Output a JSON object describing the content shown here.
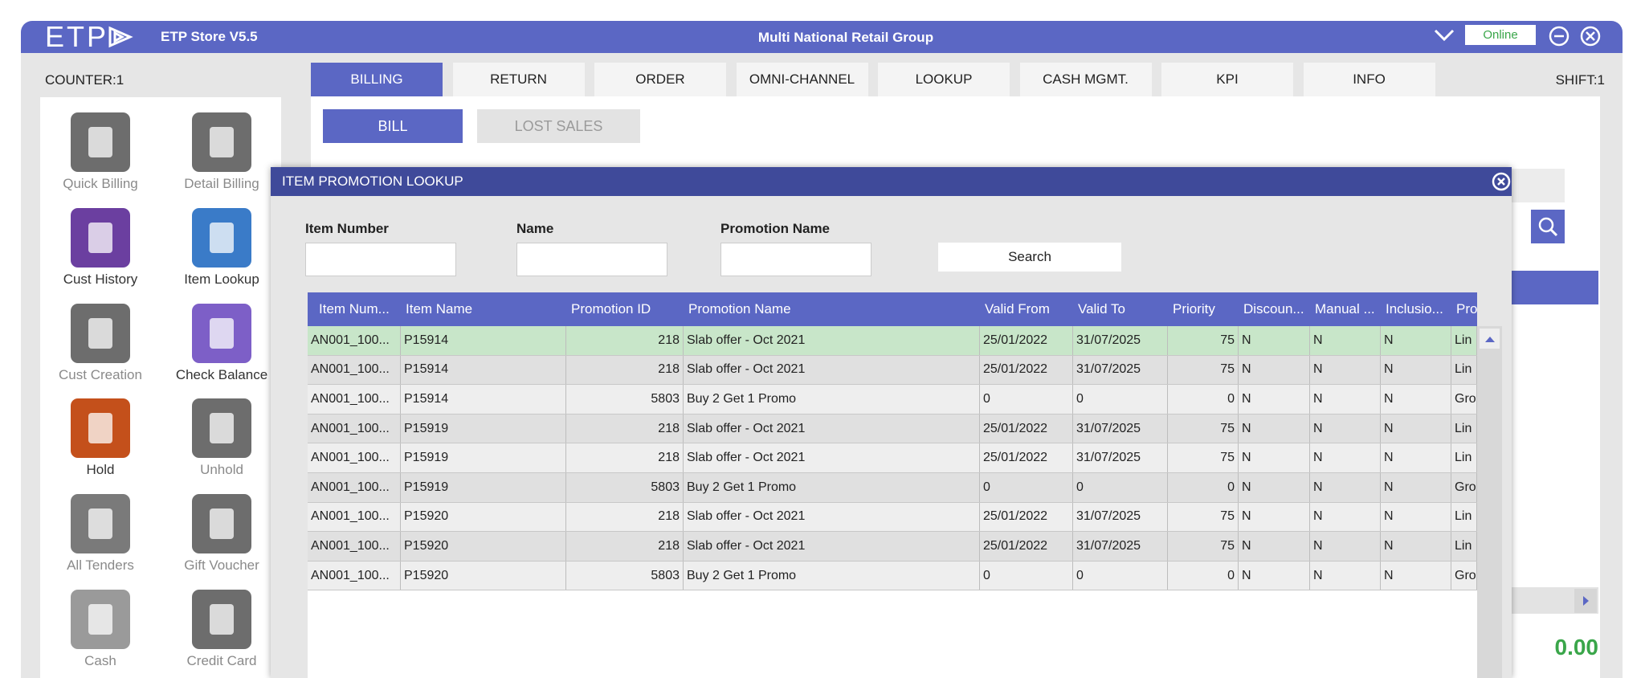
{
  "header": {
    "logo": "ETP",
    "store": "ETP Store V5.5",
    "title": "Multi National Retail Group",
    "status": "Online"
  },
  "counter": "COUNTER:1",
  "shift": "SHIFT:1",
  "tabs": [
    "BILLING",
    "RETURN",
    "ORDER",
    "OMNI-CHANNEL",
    "LOOKUP",
    "CASH MGMT.",
    "KPI",
    "INFO"
  ],
  "subtabs": [
    "BILL",
    "LOST SALES"
  ],
  "sidebar": [
    "Quick Billing",
    "Detail Billing",
    "Cust History",
    "Item Lookup",
    "Cust Creation",
    "Check Balance",
    "Hold",
    "Unhold",
    "All Tenders",
    "Gift Voucher",
    "Cash",
    "Credit Card"
  ],
  "total": "0.00",
  "dialog": {
    "title": "ITEM PROMOTION LOOKUP",
    "fields": [
      "Item Number",
      "Name",
      "Promotion Name"
    ],
    "search": "Search",
    "columns": [
      "Item Num...",
      "Item Name",
      "Promotion ID",
      "Promotion Name",
      "Valid From",
      "Valid To",
      "Priority",
      "Discoun...",
      "Manual ...",
      "Inclusio...",
      "Pro"
    ],
    "rows": [
      [
        "AN001_100...",
        "P15914",
        218,
        "Slab offer - Oct 2021",
        "25/01/2022",
        "31/07/2025",
        75,
        "N",
        "N",
        "N",
        "Lin"
      ],
      [
        "AN001_100...",
        "P15914",
        218,
        "Slab offer - Oct 2021",
        "25/01/2022",
        "31/07/2025",
        75,
        "N",
        "N",
        "N",
        "Lin"
      ],
      [
        "AN001_100...",
        "P15914",
        5803,
        "Buy 2 Get 1 Promo",
        "0",
        "0",
        0,
        "N",
        "N",
        "N",
        "Gro"
      ],
      [
        "AN001_100...",
        "P15919",
        218,
        "Slab offer - Oct 2021",
        "25/01/2022",
        "31/07/2025",
        75,
        "N",
        "N",
        "N",
        "Lin"
      ],
      [
        "AN001_100...",
        "P15919",
        218,
        "Slab offer - Oct 2021",
        "25/01/2022",
        "31/07/2025",
        75,
        "N",
        "N",
        "N",
        "Lin"
      ],
      [
        "AN001_100...",
        "P15919",
        5803,
        "Buy 2 Get 1 Promo",
        "0",
        "0",
        0,
        "N",
        "N",
        "N",
        "Gro"
      ],
      [
        "AN001_100...",
        "P15920",
        218,
        "Slab offer - Oct 2021",
        "25/01/2022",
        "31/07/2025",
        75,
        "N",
        "N",
        "N",
        "Lin"
      ],
      [
        "AN001_100...",
        "P15920",
        218,
        "Slab offer - Oct 2021",
        "25/01/2022",
        "31/07/2025",
        75,
        "N",
        "N",
        "N",
        "Lin"
      ],
      [
        "AN001_100...",
        "P15920",
        5803,
        "Buy 2 Get 1 Promo",
        "0",
        "0",
        0,
        "N",
        "N",
        "N",
        "Gro"
      ]
    ]
  }
}
